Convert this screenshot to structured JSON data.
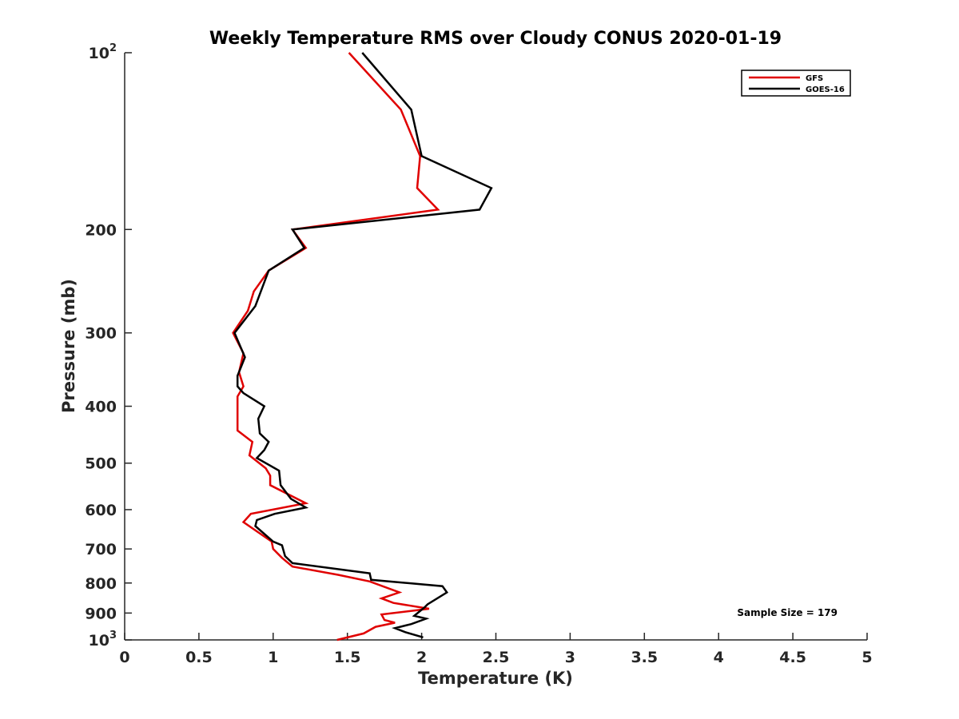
{
  "chart_data": {
    "type": "line",
    "title": "Weekly Temperature RMS over Cloudy CONUS 2020-01-19",
    "xlabel": "Temperature (K)",
    "ylabel": "Pressure (mb)",
    "xlim": [
      0,
      5
    ],
    "ylim": [
      100,
      1000
    ],
    "y_scale": "log",
    "y_direction": "reversed",
    "x_ticks": [
      "0",
      "0.5",
      "1",
      "1.5",
      "2",
      "2.5",
      "3",
      "3.5",
      "4",
      "4.5",
      "5"
    ],
    "y_ticks": [
      {
        "value": 100,
        "base": "10",
        "exp": "2"
      },
      {
        "value": 200,
        "label": "200"
      },
      {
        "value": 300,
        "label": "300"
      },
      {
        "value": 400,
        "label": "400"
      },
      {
        "value": 500,
        "label": "500"
      },
      {
        "value": 600,
        "label": "600"
      },
      {
        "value": 700,
        "label": "700"
      },
      {
        "value": 800,
        "label": "800"
      },
      {
        "value": 900,
        "label": "900"
      },
      {
        "value": 1000,
        "base": "10",
        "exp": "3"
      }
    ],
    "legend_position": "top-right",
    "annotation": "Sample Size = 179",
    "series": [
      {
        "name": "GFS",
        "color": "#e00000",
        "points": [
          [
            1.51,
            100
          ],
          [
            1.86,
            125
          ],
          [
            1.99,
            150
          ],
          [
            1.97,
            170
          ],
          [
            2.11,
            185
          ],
          [
            1.13,
            200
          ],
          [
            1.22,
            215
          ],
          [
            0.97,
            235
          ],
          [
            0.87,
            255
          ],
          [
            0.83,
            275
          ],
          [
            0.73,
            300
          ],
          [
            0.8,
            325
          ],
          [
            0.77,
            350
          ],
          [
            0.8,
            370
          ],
          [
            0.76,
            385
          ],
          [
            0.76,
            410
          ],
          [
            0.76,
            440
          ],
          [
            0.86,
            460
          ],
          [
            0.84,
            485
          ],
          [
            0.95,
            510
          ],
          [
            0.98,
            525
          ],
          [
            0.98,
            545
          ],
          [
            1.22,
            585
          ],
          [
            0.85,
            610
          ],
          [
            0.8,
            630
          ],
          [
            0.99,
            680
          ],
          [
            1.0,
            700
          ],
          [
            1.06,
            725
          ],
          [
            1.13,
            750
          ],
          [
            1.44,
            775
          ],
          [
            1.65,
            795
          ],
          [
            1.85,
            830
          ],
          [
            1.73,
            850
          ],
          [
            1.81,
            865
          ],
          [
            2.05,
            885
          ],
          [
            1.73,
            905
          ],
          [
            1.75,
            925
          ],
          [
            1.82,
            935
          ],
          [
            1.69,
            950
          ],
          [
            1.61,
            975
          ],
          [
            1.43,
            1000
          ]
        ]
      },
      {
        "name": "GOES-16",
        "color": "#000000",
        "points": [
          [
            1.6,
            100
          ],
          [
            1.93,
            125
          ],
          [
            2.0,
            150
          ],
          [
            2.47,
            170
          ],
          [
            2.39,
            185
          ],
          [
            1.13,
            200
          ],
          [
            1.21,
            215
          ],
          [
            0.97,
            235
          ],
          [
            0.88,
            270
          ],
          [
            0.74,
            300
          ],
          [
            0.81,
            330
          ],
          [
            0.76,
            355
          ],
          [
            0.76,
            370
          ],
          [
            0.8,
            380
          ],
          [
            0.94,
            400
          ],
          [
            0.9,
            420
          ],
          [
            0.91,
            445
          ],
          [
            0.97,
            460
          ],
          [
            0.94,
            475
          ],
          [
            0.89,
            490
          ],
          [
            1.04,
            515
          ],
          [
            1.05,
            545
          ],
          [
            1.12,
            575
          ],
          [
            1.22,
            595
          ],
          [
            1.01,
            610
          ],
          [
            0.89,
            625
          ],
          [
            0.88,
            640
          ],
          [
            1.0,
            680
          ],
          [
            1.06,
            690
          ],
          [
            1.08,
            720
          ],
          [
            1.13,
            740
          ],
          [
            1.65,
            770
          ],
          [
            1.66,
            790
          ],
          [
            2.14,
            810
          ],
          [
            2.17,
            830
          ],
          [
            2.04,
            870
          ],
          [
            2.02,
            880
          ],
          [
            1.95,
            910
          ],
          [
            2.03,
            920
          ],
          [
            1.93,
            940
          ],
          [
            1.82,
            955
          ],
          [
            1.89,
            970
          ],
          [
            2.01,
            990
          ]
        ]
      }
    ]
  }
}
